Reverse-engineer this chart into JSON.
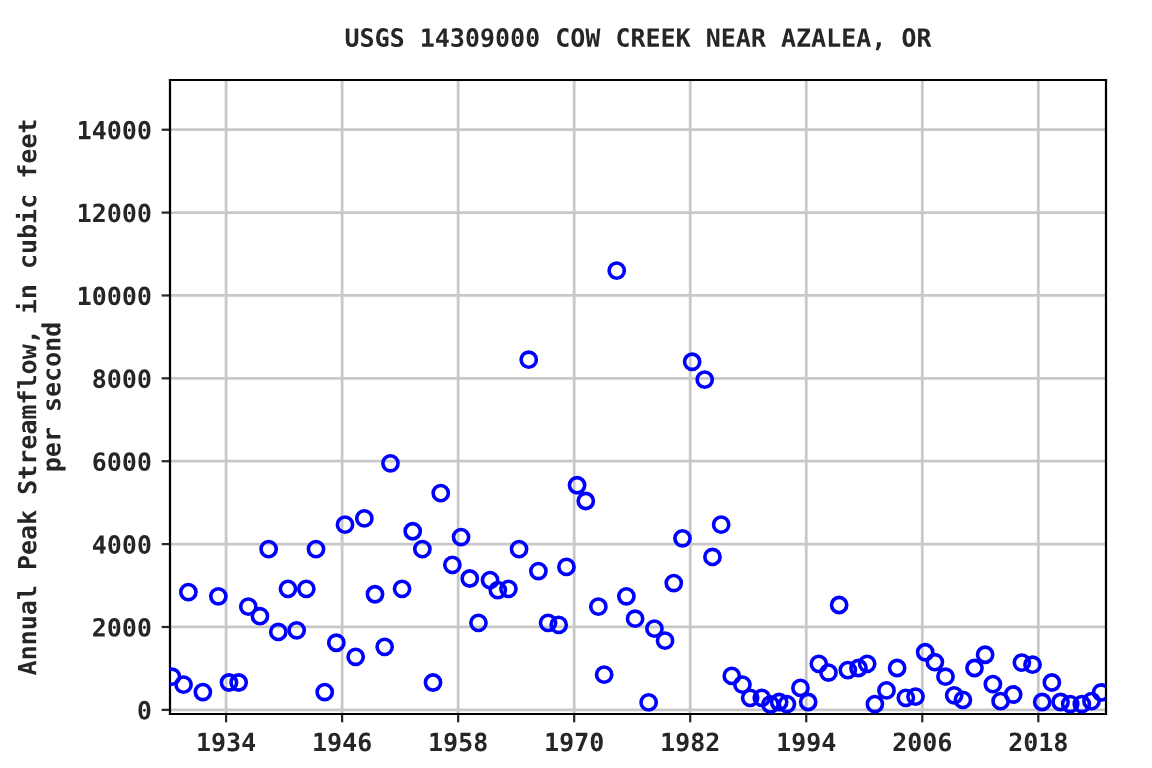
{
  "chart_data": {
    "type": "scatter",
    "title": "USGS 14309000 COW CREEK NEAR AZALEA, OR",
    "ylabel": "Annual Peak Streamflow, in cubic feet\nper second",
    "x": [
      1928.4,
      1929.6,
      1930.1,
      1931.6,
      1933.2,
      1934.3,
      1935.3,
      1936.3,
      1937.5,
      1938.4,
      1939.4,
      1940.4,
      1941.3,
      1942.3,
      1943.3,
      1944.2,
      1945.4,
      1946.3,
      1947.4,
      1948.3,
      1949.4,
      1950.4,
      1951.0,
      1952.2,
      1953.3,
      1954.3,
      1955.4,
      1956.2,
      1957.4,
      1958.3,
      1959.2,
      1960.1,
      1961.3,
      1962.1,
      1963.2,
      1964.3,
      1965.3,
      1966.3,
      1967.3,
      1968.4,
      1969.2,
      1970.3,
      1971.2,
      1972.5,
      1973.1,
      1974.4,
      1975.4,
      1976.3,
      1977.7,
      1978.3,
      1979.4,
      1980.3,
      1981.2,
      1982.2,
      1983.5,
      1984.3,
      1985.2,
      1986.3,
      1987.4,
      1988.2,
      1989.4,
      1990.3,
      1991.2,
      1992.0,
      1993.4,
      1994.2,
      1995.3,
      1996.3,
      1997.4,
      1998.3,
      1999.4,
      2000.3,
      2001.1,
      2002.3,
      2003.4,
      2004.3,
      2005.3,
      2006.3,
      2007.3,
      2008.4,
      2009.3,
      2010.2,
      2011.4,
      2012.5,
      2013.3,
      2014.1,
      2015.4,
      2016.3,
      2017.4,
      2018.4,
      2019.4,
      2020.3,
      2021.3,
      2022.5,
      2023.5,
      2024.5
    ],
    "values": [
      800,
      610,
      2840,
      430,
      2740,
      660,
      660,
      2490,
      2260,
      3880,
      1880,
      2920,
      1920,
      2920,
      3880,
      430,
      1620,
      4470,
      1280,
      4620,
      2790,
      1520,
      5950,
      2920,
      4310,
      3880,
      660,
      5230,
      3500,
      4170,
      3170,
      2100,
      3130,
      2890,
      2920,
      3880,
      8450,
      3350,
      2100,
      2050,
      3450,
      5420,
      5040,
      2490,
      850,
      10600,
      2740,
      2200,
      180,
      1960,
      1670,
      3060,
      4140,
      8400,
      7970,
      3690,
      4470,
      820,
      610,
      290,
      290,
      130,
      190,
      140,
      530,
      190,
      1110,
      900,
      2530,
      960,
      1010,
      1110,
      140,
      470,
      1010,
      290,
      320,
      1390,
      1150,
      800,
      350,
      240,
      1010,
      1330,
      620,
      210,
      370,
      1140,
      1090,
      190,
      660,
      190,
      140,
      140,
      210,
      420
    ],
    "color": "#0000ff",
    "marker": "circle",
    "grid": true,
    "xlim": [
      1928.2,
      2025.0
    ],
    "xticks": [
      1934,
      1946,
      1958,
      1970,
      1982,
      1994,
      2006,
      2018
    ],
    "ylim": [
      -100,
      15200
    ],
    "yticks": [
      0,
      2000,
      4000,
      6000,
      8000,
      10000,
      12000,
      14000
    ]
  }
}
